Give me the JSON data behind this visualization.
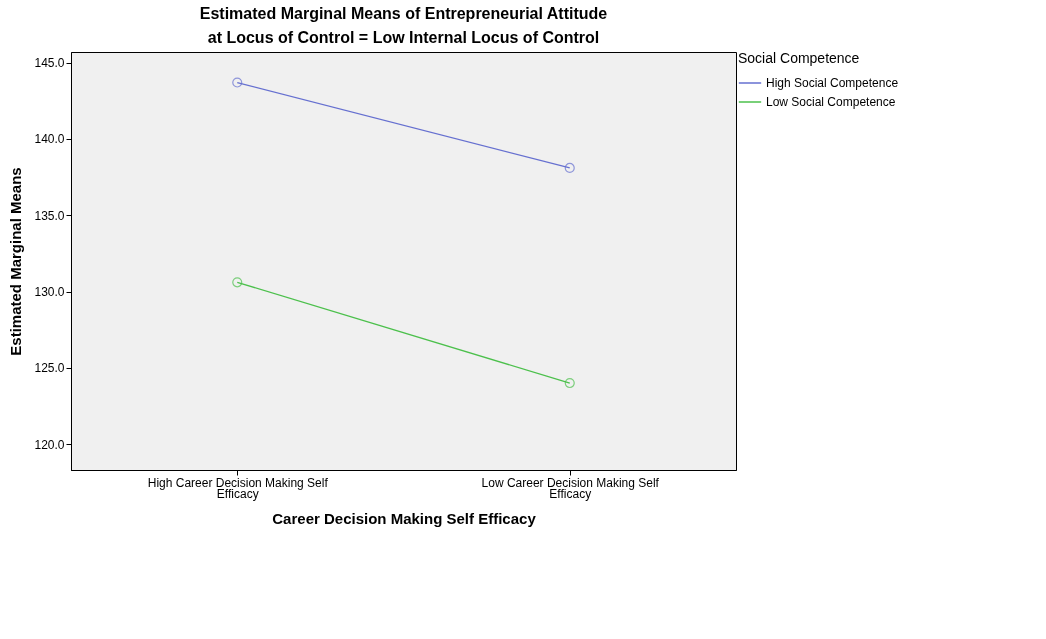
{
  "chart_data": {
    "type": "line",
    "title": "Estimated Marginal Means of Entrepreneurial Attitude",
    "subtitle": "at Locus of Control = Low Internal Locus of Control",
    "xlabel": "Career Decision Making Self Efficacy",
    "ylabel": "Estimated Marginal Means",
    "legend_title": "Social Competence",
    "categories": [
      "High Career Decision Making Self Efficacy",
      "Low Career Decision Making Self Efficacy"
    ],
    "series": [
      {
        "name": "High Social Competence",
        "color": "#6670d0",
        "values": [
          143.7,
          138.1
        ]
      },
      {
        "name": "Low Social Competence",
        "color": "#4cc04c",
        "values": [
          130.6,
          124.0
        ]
      }
    ],
    "ylim": [
      118.3,
      145.7
    ],
    "yticks": [
      {
        "value": 120,
        "label": "120.0"
      },
      {
        "value": 125,
        "label": "125.0"
      },
      {
        "value": 130,
        "label": "130.0"
      },
      {
        "value": 135,
        "label": "135.0"
      },
      {
        "value": 140,
        "label": "140.0"
      },
      {
        "value": 145,
        "label": "145.0"
      }
    ],
    "grid": false,
    "legend": "top right",
    "marker": "circle",
    "line_style": "solid"
  }
}
